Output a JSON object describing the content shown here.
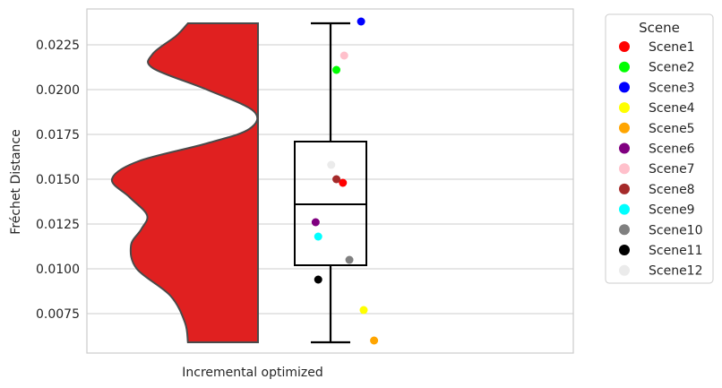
{
  "chart_data": {
    "type": "violin+box+scatter",
    "title": "",
    "xlabel": "",
    "ylabel": "Fréchet Distance",
    "categories": [
      "Incremental optimized"
    ],
    "ylim": [
      0.0053,
      0.0245
    ],
    "yticks": [
      "0.0075",
      "0.0100",
      "0.0125",
      "0.0150",
      "0.0175",
      "0.0200",
      "0.0225"
    ],
    "ytick_values": [
      0.0075,
      0.01,
      0.0125,
      0.015,
      0.0175,
      0.02,
      0.0225
    ],
    "grid": "horizontal",
    "violin_color": "#e02020",
    "violin_profile": [
      {
        "y": 0.0059,
        "w": 0.48
      },
      {
        "y": 0.007,
        "w": 0.5
      },
      {
        "y": 0.0085,
        "w": 0.6
      },
      {
        "y": 0.01,
        "w": 0.83
      },
      {
        "y": 0.0113,
        "w": 0.87
      },
      {
        "y": 0.0122,
        "w": 0.8
      },
      {
        "y": 0.013,
        "w": 0.76
      },
      {
        "y": 0.014,
        "w": 0.88
      },
      {
        "y": 0.015,
        "w": 1.0
      },
      {
        "y": 0.016,
        "w": 0.82
      },
      {
        "y": 0.017,
        "w": 0.35
      },
      {
        "y": 0.0178,
        "w": 0.06
      },
      {
        "y": 0.0188,
        "w": 0.03
      },
      {
        "y": 0.02,
        "w": 0.35
      },
      {
        "y": 0.0212,
        "w": 0.72
      },
      {
        "y": 0.022,
        "w": 0.72
      },
      {
        "y": 0.023,
        "w": 0.56
      },
      {
        "y": 0.0237,
        "w": 0.48
      }
    ],
    "box": {
      "whisker_low": 0.0059,
      "q1": 0.0102,
      "median": 0.0136,
      "q3": 0.0171,
      "whisker_high": 0.0237
    },
    "legend": {
      "title": "Scene",
      "position": "outside-right"
    },
    "series": [
      {
        "name": "Scene1",
        "color": "#ff0000",
        "x": 0.64,
        "y": 0.0148
      },
      {
        "name": "Scene2",
        "color": "#00ff00",
        "x": 0.59,
        "y": 0.0211
      },
      {
        "name": "Scene3",
        "color": "#0000ff",
        "x": 0.78,
        "y": 0.0238
      },
      {
        "name": "Scene4",
        "color": "#ffff00",
        "x": 0.8,
        "y": 0.0077
      },
      {
        "name": "Scene5",
        "color": "#ffa500",
        "x": 0.88,
        "y": 0.006
      },
      {
        "name": "Scene6",
        "color": "#800080",
        "x": 0.43,
        "y": 0.0126
      },
      {
        "name": "Scene7",
        "color": "#ffc0cb",
        "x": 0.65,
        "y": 0.0219
      },
      {
        "name": "Scene8",
        "color": "#a52a2a",
        "x": 0.59,
        "y": 0.015
      },
      {
        "name": "Scene9",
        "color": "#00ffff",
        "x": 0.45,
        "y": 0.0118
      },
      {
        "name": "Scene10",
        "color": "#808080",
        "x": 0.69,
        "y": 0.0105
      },
      {
        "name": "Scene11",
        "color": "#000000",
        "x": 0.45,
        "y": 0.0094
      },
      {
        "name": "Scene12",
        "color": "#ebebeb",
        "x": 0.55,
        "y": 0.0158
      }
    ]
  }
}
